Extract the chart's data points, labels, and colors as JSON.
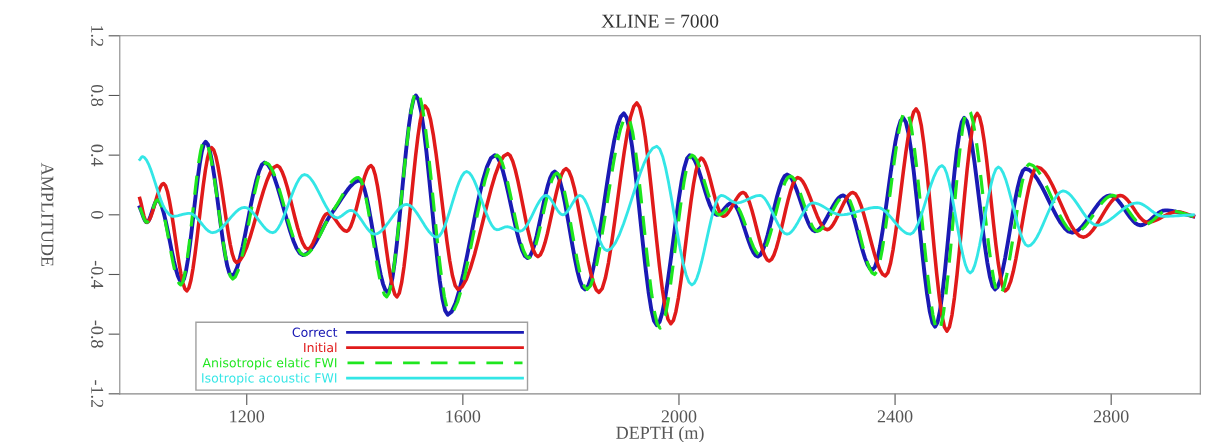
{
  "chart_data": {
    "type": "line",
    "title": "XLINE = 7000",
    "xlabel": "DEPTH (m)",
    "ylabel": "AMPLITUDE",
    "xlim": [
      965,
      2965
    ],
    "ylim": [
      -1.2,
      1.2
    ],
    "xticks": [
      1200,
      1600,
      2000,
      2400,
      2800
    ],
    "yticks": [
      -1.2,
      -0.8,
      -0.4,
      0,
      0.4,
      0.8,
      1.2
    ],
    "grid": false,
    "legend": "bottom left",
    "marker": "none",
    "series": [
      {
        "name": "Correct",
        "color": "#1a1ab4",
        "line_style": "solid",
        "x": [
          1002,
          1015,
          1035,
          1080,
          1124,
          1172,
          1233,
          1304,
          1359,
          1409,
          1461,
          1513,
          1572,
          1659,
          1720,
          1770,
          1826,
          1898,
          1959,
          2020,
          2070,
          2098,
          2146,
          2200,
          2252,
          2304,
          2358,
          2415,
          2474,
          2528,
          2585,
          2641,
          2728,
          2798,
          2854,
          2900,
          2952
        ],
        "values": [
          0.05,
          -0.05,
          0.1,
          -0.45,
          0.49,
          -0.41,
          0.35,
          -0.27,
          0.02,
          0.23,
          -0.52,
          0.8,
          -0.67,
          0.4,
          -0.29,
          0.29,
          -0.5,
          0.68,
          -0.74,
          0.4,
          0.0,
          0.08,
          -0.28,
          0.27,
          -0.11,
          0.13,
          -0.37,
          0.65,
          -0.75,
          0.65,
          -0.5,
          0.31,
          -0.12,
          0.13,
          -0.07,
          0.03,
          -0.01
        ]
      },
      {
        "name": "Initial",
        "color": "#e01a1a",
        "line_style": "solid",
        "x": [
          1002,
          1015,
          1046,
          1089,
          1135,
          1181,
          1256,
          1313,
          1350,
          1385,
          1430,
          1478,
          1530,
          1591,
          1683,
          1739,
          1791,
          1852,
          1922,
          1985,
          2041,
          2082,
          2119,
          2167,
          2220,
          2274,
          2322,
          2382,
          2439,
          2496,
          2552,
          2604,
          2663,
          2748,
          2817,
          2867,
          2922,
          2952
        ],
        "values": [
          0.11,
          -0.05,
          0.21,
          -0.51,
          0.45,
          -0.32,
          0.33,
          -0.23,
          0.01,
          -0.11,
          0.33,
          -0.55,
          0.73,
          -0.5,
          0.41,
          -0.28,
          0.31,
          -0.52,
          0.75,
          -0.73,
          0.38,
          -0.01,
          0.15,
          -0.31,
          0.25,
          -0.1,
          0.15,
          -0.41,
          0.71,
          -0.78,
          0.68,
          -0.51,
          0.32,
          -0.15,
          0.13,
          -0.05,
          0.02,
          -0.01
        ]
      },
      {
        "name": "Anisotropic elatic FWI",
        "color": "#1ee61e",
        "line_style": "dashed",
        "x": [
          1002,
          1015,
          1035,
          1078,
          1122,
          1174,
          1235,
          1306,
          1360,
          1407,
          1459,
          1515,
          1576,
          1663,
          1722,
          1774,
          1830,
          1904,
          1965,
          2024,
          2074,
          2102,
          2150,
          2206,
          2256,
          2308,
          2362,
          2420,
          2480,
          2535,
          2593,
          2648,
          2733,
          2803,
          2860,
          2905,
          2952
        ],
        "values": [
          0.05,
          -0.05,
          0.1,
          -0.47,
          0.5,
          -0.43,
          0.35,
          -0.27,
          0.03,
          0.25,
          -0.55,
          0.83,
          -0.66,
          0.4,
          -0.29,
          0.28,
          -0.5,
          0.66,
          -0.76,
          0.4,
          0.0,
          0.07,
          -0.27,
          0.26,
          -0.11,
          0.13,
          -0.4,
          0.7,
          -0.78,
          0.71,
          -0.54,
          0.34,
          -0.12,
          0.13,
          -0.07,
          0.03,
          -0.01
        ]
      },
      {
        "name": "Isotropic acoustic FWI",
        "color": "#33e6e6",
        "line_style": "solid",
        "x": [
          1002,
          1007,
          1052,
          1063,
          1094,
          1137,
          1196,
          1248,
          1307,
          1367,
          1393,
          1437,
          1496,
          1552,
          1607,
          1663,
          1682,
          1706,
          1754,
          1785,
          1817,
          1867,
          1959,
          2024,
          2078,
          2107,
          2150,
          2200,
          2248,
          2300,
          2367,
          2428,
          2487,
          2539,
          2591,
          2646,
          2711,
          2774,
          2848,
          2896,
          2952
        ],
        "values": [
          0.37,
          0.39,
          0.02,
          -0.01,
          0.01,
          -0.12,
          0.05,
          -0.12,
          0.27,
          -0.02,
          0.03,
          -0.13,
          0.07,
          -0.15,
          0.29,
          -0.1,
          -0.08,
          -0.11,
          0.13,
          0.0,
          0.13,
          -0.24,
          0.46,
          -0.47,
          0.13,
          0.08,
          0.13,
          -0.13,
          0.08,
          0.0,
          0.05,
          -0.13,
          0.33,
          -0.39,
          0.32,
          -0.21,
          0.16,
          -0.07,
          0.08,
          -0.01,
          0.0
        ]
      }
    ]
  }
}
